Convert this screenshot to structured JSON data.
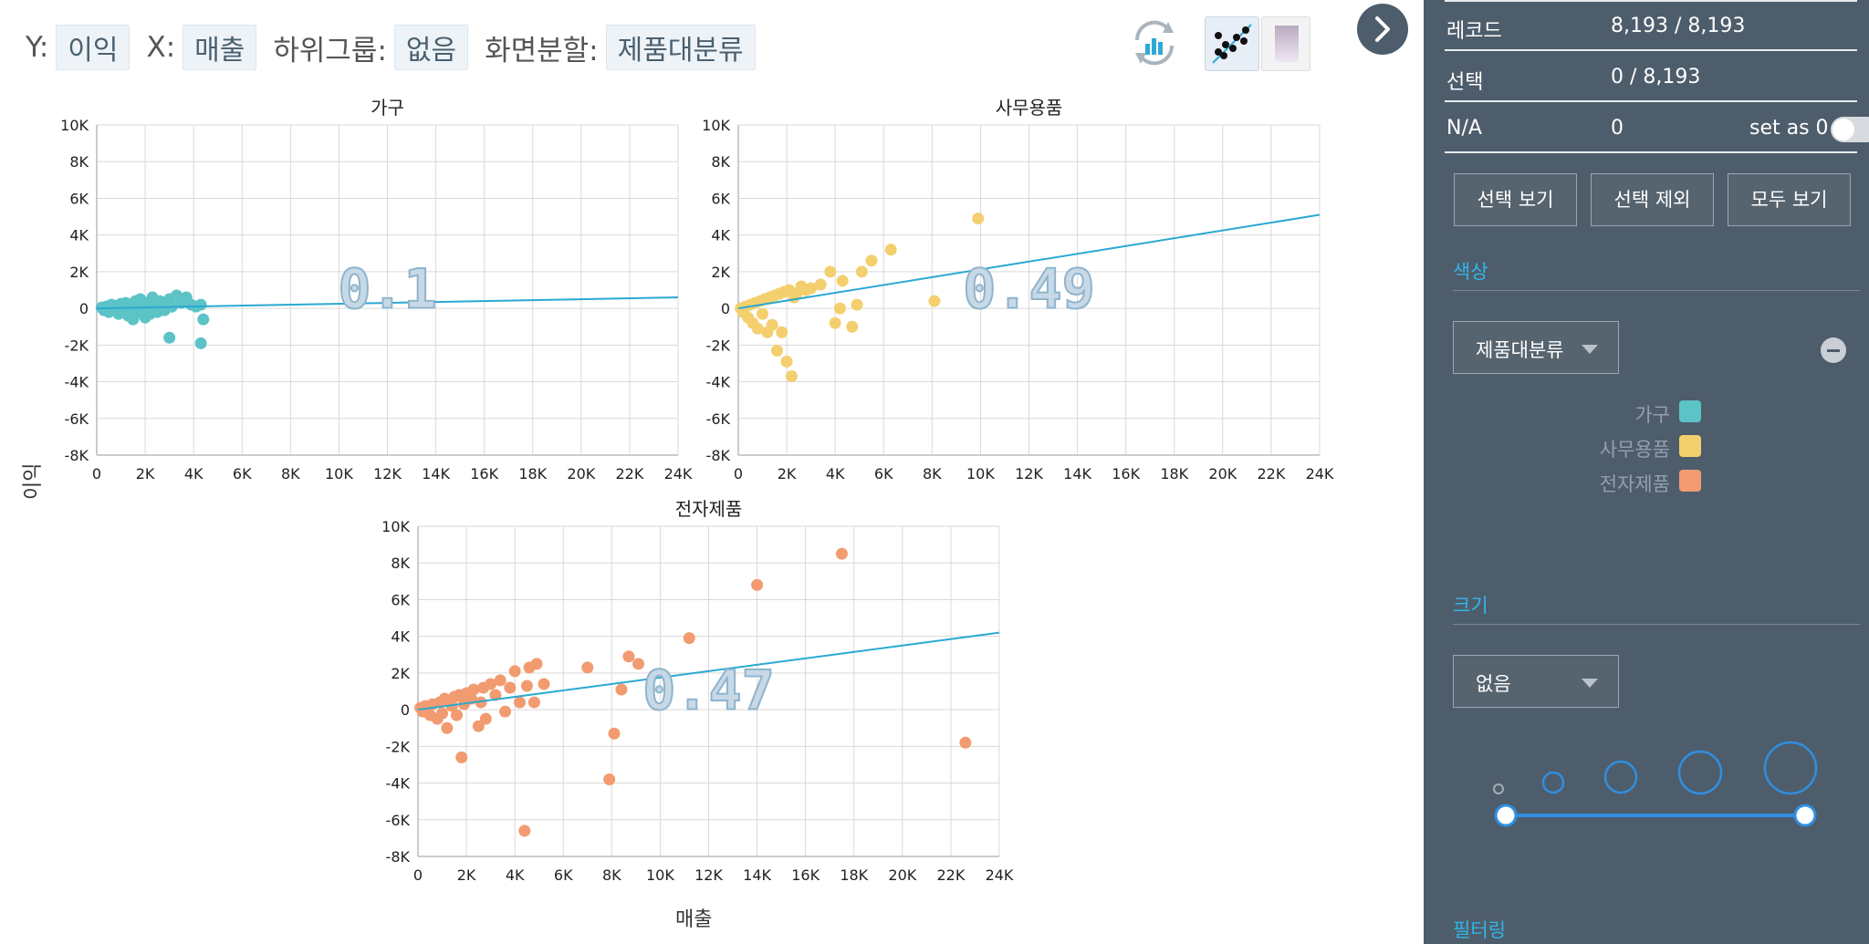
{
  "toolbar": {
    "y_label": "Y:",
    "y_value": "이익",
    "x_label": "X:",
    "x_value": "매출",
    "subgroup_label": "하위그룹:",
    "subgroup_value": "없음",
    "split_label": "화면분할:",
    "split_value": "제품대분류"
  },
  "icons": {
    "refresh": "refresh-chart-icon",
    "trendline": "scatter-trendline-icon",
    "gradient": "gradient-icon",
    "collapse": "chevron-right-icon",
    "minus": "minus-icon"
  },
  "axis_titles": {
    "y": "이익",
    "x": "매출"
  },
  "chart_data": [
    {
      "type": "scatter",
      "title": "가구",
      "color": "#5cc3c7",
      "xlim": [
        0,
        24000
      ],
      "ylim": [
        -8000,
        10000
      ],
      "x_ticks": [
        "0",
        "2K",
        "4K",
        "6K",
        "8K",
        "10K",
        "12K",
        "14K",
        "16K",
        "18K",
        "20K",
        "22K",
        "24K"
      ],
      "y_ticks": [
        "10K",
        "8K",
        "6K",
        "4K",
        "2K",
        "0",
        "-2K",
        "-4K",
        "-6K",
        "-8K"
      ],
      "r_squared": "0.1",
      "trendline": {
        "x": [
          0,
          24000
        ],
        "y": [
          0,
          600
        ]
      },
      "points": [
        [
          200,
          50
        ],
        [
          300,
          -100
        ],
        [
          400,
          100
        ],
        [
          500,
          -200
        ],
        [
          600,
          200
        ],
        [
          700,
          0
        ],
        [
          800,
          150
        ],
        [
          900,
          -300
        ],
        [
          1000,
          250
        ],
        [
          1100,
          -100
        ],
        [
          1200,
          300
        ],
        [
          1300,
          -400
        ],
        [
          1400,
          100
        ],
        [
          1500,
          -600
        ],
        [
          1600,
          400
        ],
        [
          1700,
          -200
        ],
        [
          1800,
          500
        ],
        [
          1900,
          0
        ],
        [
          2000,
          -500
        ],
        [
          2100,
          300
        ],
        [
          2200,
          -300
        ],
        [
          2300,
          600
        ],
        [
          2400,
          100
        ],
        [
          2500,
          -200
        ],
        [
          2600,
          400
        ],
        [
          2700,
          200
        ],
        [
          2800,
          -100
        ],
        [
          3000,
          500
        ],
        [
          3100,
          100
        ],
        [
          3300,
          700
        ],
        [
          3500,
          300
        ],
        [
          3700,
          600
        ],
        [
          3900,
          200
        ],
        [
          4100,
          100
        ],
        [
          4300,
          200
        ],
        [
          3000,
          -1600
        ],
        [
          4300,
          -1900
        ],
        [
          4400,
          -600
        ]
      ]
    },
    {
      "type": "scatter",
      "title": "사무용품",
      "color": "#f4cf6e",
      "xlim": [
        0,
        24000
      ],
      "ylim": [
        -8000,
        10000
      ],
      "x_ticks": [
        "0",
        "2K",
        "4K",
        "6K",
        "8K",
        "10K",
        "12K",
        "14K",
        "16K",
        "18K",
        "20K",
        "22K",
        "24K"
      ],
      "y_ticks": [
        "10K",
        "8K",
        "6K",
        "4K",
        "2K",
        "0",
        "-2K",
        "-4K",
        "-6K",
        "-8K"
      ],
      "r_squared": "0.49",
      "trendline": {
        "x": [
          0,
          24000
        ],
        "y": [
          0,
          5100
        ]
      },
      "points": [
        [
          100,
          0
        ],
        [
          200,
          -200
        ],
        [
          300,
          100
        ],
        [
          400,
          -500
        ],
        [
          500,
          200
        ],
        [
          600,
          -800
        ],
        [
          700,
          300
        ],
        [
          800,
          -1100
        ],
        [
          900,
          400
        ],
        [
          1000,
          -300
        ],
        [
          1100,
          500
        ],
        [
          1200,
          -1300
        ],
        [
          1300,
          600
        ],
        [
          1400,
          -900
        ],
        [
          1500,
          700
        ],
        [
          1600,
          -2300
        ],
        [
          1700,
          800
        ],
        [
          1800,
          -1300
        ],
        [
          1900,
          900
        ],
        [
          2000,
          -2900
        ],
        [
          2100,
          1000
        ],
        [
          2200,
          -3700
        ],
        [
          2300,
          600
        ],
        [
          2400,
          800
        ],
        [
          2600,
          1200
        ],
        [
          2800,
          1000
        ],
        [
          3000,
          1100
        ],
        [
          3400,
          1300
        ],
        [
          3800,
          2000
        ],
        [
          4000,
          -800
        ],
        [
          4200,
          0
        ],
        [
          4300,
          1500
        ],
        [
          4700,
          -1000
        ],
        [
          4900,
          200
        ],
        [
          5100,
          2000
        ],
        [
          5500,
          2600
        ],
        [
          6300,
          3200
        ],
        [
          8100,
          400
        ],
        [
          9900,
          4900
        ]
      ]
    },
    {
      "type": "scatter",
      "title": "전자제품",
      "color": "#f29b70",
      "xlim": [
        0,
        24000
      ],
      "ylim": [
        -8000,
        10000
      ],
      "x_ticks": [
        "0",
        "2K",
        "4K",
        "6K",
        "8K",
        "10K",
        "12K",
        "14K",
        "16K",
        "18K",
        "20K",
        "22K",
        "24K"
      ],
      "y_ticks": [
        "10K",
        "8K",
        "6K",
        "4K",
        "2K",
        "0",
        "-2K",
        "-4K",
        "-6K",
        "-8K"
      ],
      "r_squared": "0.47",
      "trendline": {
        "x": [
          0,
          24000
        ],
        "y": [
          0,
          4200
        ]
      },
      "points": [
        [
          100,
          100
        ],
        [
          200,
          -100
        ],
        [
          300,
          200
        ],
        [
          500,
          -300
        ],
        [
          600,
          300
        ],
        [
          800,
          -500
        ],
        [
          900,
          400
        ],
        [
          1000,
          -200
        ],
        [
          1100,
          600
        ],
        [
          1200,
          -1000
        ],
        [
          1300,
          500
        ],
        [
          1400,
          200
        ],
        [
          1500,
          700
        ],
        [
          1600,
          -300
        ],
        [
          1700,
          800
        ],
        [
          1800,
          -2600
        ],
        [
          1900,
          300
        ],
        [
          2000,
          900
        ],
        [
          2200,
          600
        ],
        [
          2300,
          1100
        ],
        [
          2500,
          -900
        ],
        [
          2600,
          400
        ],
        [
          2700,
          1200
        ],
        [
          2800,
          -500
        ],
        [
          3000,
          1400
        ],
        [
          3200,
          800
        ],
        [
          3400,
          1600
        ],
        [
          3600,
          -100
        ],
        [
          3800,
          1200
        ],
        [
          4000,
          2100
        ],
        [
          4200,
          400
        ],
        [
          4400,
          -6600
        ],
        [
          4500,
          1300
        ],
        [
          4600,
          2300
        ],
        [
          4800,
          400
        ],
        [
          4900,
          2500
        ],
        [
          5200,
          1400
        ],
        [
          7000,
          2300
        ],
        [
          7900,
          -3800
        ],
        [
          8100,
          -1300
        ],
        [
          8400,
          1100
        ],
        [
          8700,
          2900
        ],
        [
          9100,
          2500
        ],
        [
          11200,
          3900
        ],
        [
          14000,
          6800
        ],
        [
          17500,
          8500
        ],
        [
          22600,
          -1800
        ]
      ]
    }
  ],
  "side": {
    "records_label": "레코드",
    "records_value": "8,193 / 8,193",
    "selected_label": "선택",
    "selected_value": "0 / 8,193",
    "na_label": "N/A",
    "na_value": "0",
    "set_zero_label": "set as 0",
    "btn_view_selected": "선택 보기",
    "btn_exclude_selected": "선택 제외",
    "btn_view_all": "모두 보기",
    "color_section": "색상",
    "color_dropdown": "제품대분류",
    "legend": [
      {
        "name": "가구",
        "color": "#5cc3c7"
      },
      {
        "name": "사무용품",
        "color": "#f4cf6e"
      },
      {
        "name": "전자제품",
        "color": "#f29b70"
      }
    ],
    "size_section": "크기",
    "size_dropdown": "없음",
    "filter_section": "필터링",
    "size_slider": {
      "min_fraction": 0.0,
      "max_fraction": 1.0
    }
  }
}
